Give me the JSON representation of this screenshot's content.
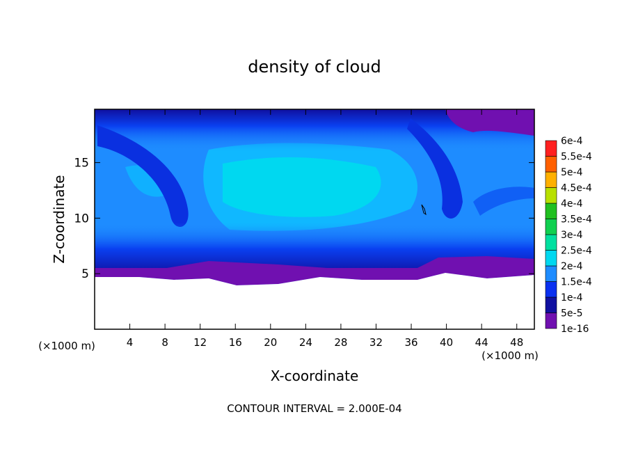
{
  "chart_data": {
    "type": "contour",
    "title": "density of cloud",
    "xlabel": "X-coordinate",
    "ylabel": "Z-coordinate",
    "xunit": "(×1000 m)",
    "yunit": "(×1000 m)",
    "note": "CONTOUR INTERVAL = 2.000E-04",
    "xlim": [
      0,
      50
    ],
    "ylim": [
      0,
      19.8
    ],
    "xticks": [
      4,
      8,
      12,
      16,
      20,
      24,
      28,
      32,
      36,
      40,
      44,
      48
    ],
    "yticks": [
      5,
      10,
      15
    ],
    "colorbar": {
      "levels": [
        {
          "value": 1e-16,
          "label": "1e-16"
        },
        {
          "value": 5e-05,
          "label": "5e-5"
        },
        {
          "value": 0.0001,
          "label": "1e-4"
        },
        {
          "value": 0.00015,
          "label": "1.5e-4"
        },
        {
          "value": 0.0002,
          "label": "2e-4"
        },
        {
          "value": 0.00025,
          "label": "2.5e-4"
        },
        {
          "value": 0.0003,
          "label": "3e-4"
        },
        {
          "value": 0.00035,
          "label": "3.5e-4"
        },
        {
          "value": 0.0004,
          "label": "4e-4"
        },
        {
          "value": 0.00045,
          "label": "4.5e-4"
        },
        {
          "value": 0.0005,
          "label": "5e-4"
        },
        {
          "value": 0.00055,
          "label": "5.5e-4"
        },
        {
          "value": 0.0006,
          "label": "6e-4"
        }
      ],
      "colors": [
        "#7010b0",
        "#1010a0",
        "#0a30f0",
        "#1e8cff",
        "#00d8f0",
        "#00e0a0",
        "#10d050",
        "#20c020",
        "#b8e000",
        "#ffb000",
        "#ff6000",
        "#ff2020",
        "#f89090"
      ]
    }
  }
}
